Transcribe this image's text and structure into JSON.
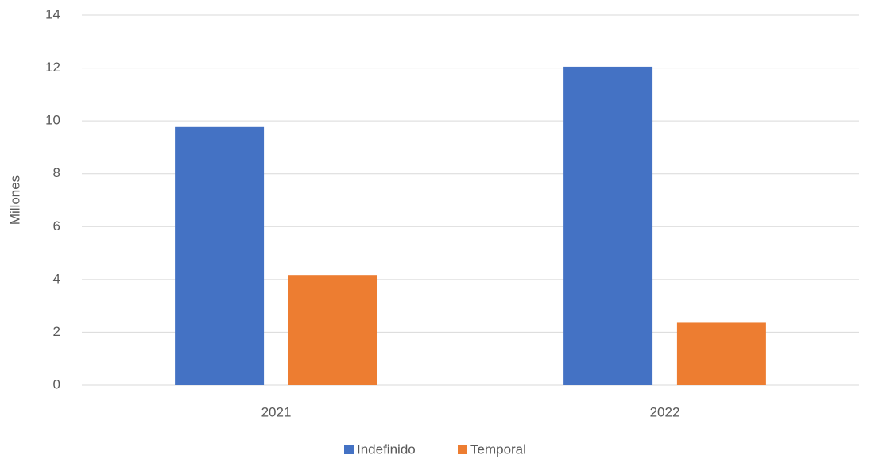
{
  "chart_data": {
    "type": "bar",
    "y_label": "Millones",
    "categories": [
      "2021",
      "2022"
    ],
    "series": [
      {
        "name": "Indefinido",
        "color": "#4472c4",
        "values": [
          9.77,
          12.05
        ]
      },
      {
        "name": "Temporal",
        "color": "#ed7d31",
        "values": [
          4.17,
          2.36
        ]
      }
    ],
    "ylim": [
      0,
      14
    ],
    "yticks": [
      0,
      2,
      4,
      6,
      8,
      10,
      12,
      14
    ],
    "grid": true,
    "legend": "bottom"
  }
}
